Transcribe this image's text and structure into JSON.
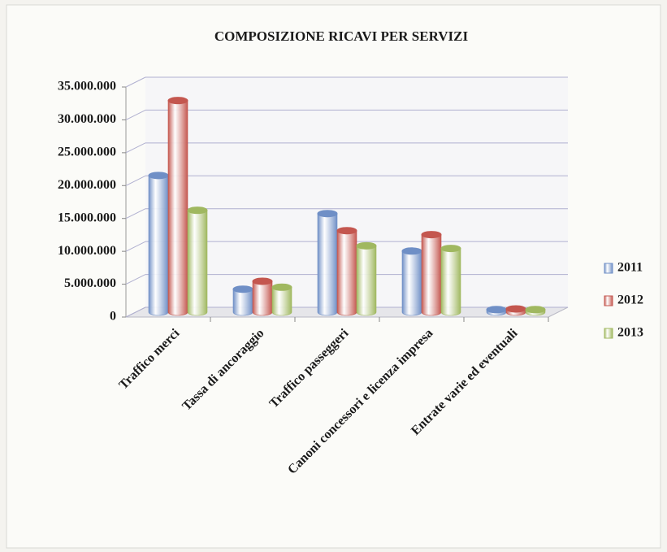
{
  "chart_data": {
    "type": "bar",
    "title": "COMPOSIZIONE RICAVI PER SERVIZI",
    "categories": [
      "Traffico merci",
      "Tassa di ancoraggio",
      "Traffico passeggeri",
      "Canoni concessori e licenza impresa",
      "Entrate varie ed eventuali"
    ],
    "series": [
      {
        "name": "2011",
        "color": "#6f8fc6",
        "values": [
          20800000,
          3500000,
          15000000,
          9300000,
          400000
        ]
      },
      {
        "name": "2012",
        "color": "#c4574f",
        "values": [
          32200000,
          4700000,
          12400000,
          11800000,
          500000
        ]
      },
      {
        "name": "2013",
        "color": "#a0b860",
        "values": [
          15500000,
          3800000,
          10100000,
          9700000,
          400000
        ]
      }
    ],
    "ylim": [
      0,
      35000000
    ],
    "yticks": [
      0,
      {
        "value": 5000000,
        "label": "5.000.000"
      },
      {
        "value": 10000000,
        "label": "10.000.000"
      },
      {
        "value": 15000000,
        "label": "15.000.000"
      },
      {
        "value": 20000000,
        "label": "20.000.000"
      },
      {
        "value": 25000000,
        "label": "25.000.000"
      },
      {
        "value": 30000000,
        "label": "30.000.000"
      },
      {
        "value": 35000000,
        "label": "35.000.000"
      }
    ],
    "grid": true,
    "legend": "right"
  }
}
